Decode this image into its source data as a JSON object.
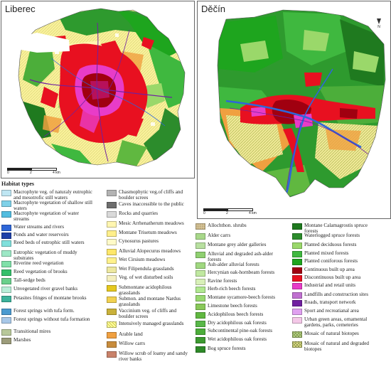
{
  "maps": {
    "liberec": {
      "title": "Liberec",
      "scale": {
        "ticks": [
          "0",
          "2",
          "4 km"
        ]
      }
    },
    "decin": {
      "title": "Děčín",
      "scale": {
        "ticks": [
          "0",
          "2",
          "4 km"
        ]
      },
      "north_label": "N"
    }
  },
  "legend": {
    "title": "Habitat types",
    "columns": [
      [
        {
          "label": "Macrophyte veg. of naturaly eutrophic and mesotrofic still waters",
          "color": "#bfe6f3"
        },
        {
          "label": "Macrophyte vegetation of shallow still waters",
          "color": "#7fd1e8"
        },
        {
          "label": "Macrophyte vegetation of water streams",
          "color": "#52bde0"
        },
        {
          "label": "Water streams and rivers",
          "color": "#2e66d8"
        },
        {
          "label": "Ponds and water reservoirs",
          "color": "#1e40a8"
        },
        {
          "label": "Reed beds of eutrophic still waters",
          "color": "#80e0dc"
        },
        {
          "label": "Eutrophic vegetation of muddy substrates",
          "color": "#9de8c6"
        },
        {
          "label": "Riverine reed vegetation",
          "color": "#7fe0a8"
        },
        {
          "label": "Reed vegetation of brooks",
          "color": "#33c06a"
        },
        {
          "label": "Tall-sedge beds",
          "color": "#6ad08c"
        },
        {
          "label": "Unvegetated river gravel banks",
          "color": "#b8eed8"
        },
        {
          "label": "Petasites fringes of montane brooks",
          "color": "#3cb39b"
        },
        {
          "label": "Forest springs with tufa form.",
          "color": "#4a9ad0"
        },
        {
          "label": "Forest springs without tufa formation",
          "color": "#a8c8e8"
        },
        {
          "label": "Transitional mires",
          "color": "#b8c89a"
        },
        {
          "label": "Marshes",
          "color": "#9c9c7a"
        }
      ],
      [
        {
          "label": "Chasmophytic veg.of cliffs and boulder screes",
          "color": "#b3b3b3"
        },
        {
          "label": "Caves inaccessible to the public",
          "color": "#6e6e6e"
        },
        {
          "label": "Rocks and quarries",
          "color": "#d9d9d9"
        },
        {
          "label": "Mesic Arrhenatherum meadows",
          "color": "#fff6b0"
        },
        {
          "label": "Montane Trisetum meadows",
          "color": "#ffef8a"
        },
        {
          "label": "Cynosurus pastures",
          "color": "#fffac8"
        },
        {
          "label": "Alluvial Alopecurus meadows",
          "color": "#ffe76a"
        },
        {
          "label": "Wet Cirsium meadows",
          "color": "#fff28c"
        },
        {
          "label": "Wet Filipendula grasslands",
          "color": "#ede8a0"
        },
        {
          "label": "Veg. of wet disturbed soils",
          "color": "#f4efbf"
        },
        {
          "label": "Submontane acidophilous grasslands",
          "color": "#e5c81e"
        },
        {
          "label": "Submon. and montane Nardus grasslands",
          "color": "#f2d250"
        },
        {
          "label": "Vaccinium veg. of cliffs and boulder screes",
          "color": "#c9b13a"
        },
        {
          "label": "Intensively managed grasslands",
          "color": "#ffffa0"
        },
        {
          "label": "Arable land",
          "color": "#f0a040"
        },
        {
          "label": "Willow carrs",
          "color": "#c88c3c"
        },
        {
          "label": "Willow scrub of loamy and sandy river banks",
          "color": "#c9826a"
        }
      ],
      [
        {
          "label": "Allochthon. shrubs",
          "color": "#d8c9a0"
        },
        {
          "label": "Alder carrs",
          "color": "#a8d88a"
        },
        {
          "label": "Montane grey alder galleries",
          "color": "#b8e0a0"
        },
        {
          "label": "Alluvial and degraded ash-alder forests",
          "color": "#8fd070"
        },
        {
          "label": "Ash-alder alluvial forests",
          "color": "#a0d880"
        },
        {
          "label": "Hercynian oak-hornbeam forests",
          "color": "#c0e8a0"
        },
        {
          "label": "Ravine forests",
          "color": "#d8f0b8"
        },
        {
          "label": "Herb-rich beech forests",
          "color": "#b0e890"
        },
        {
          "label": "Montane sycamore-beech forests",
          "color": "#98d870"
        },
        {
          "label": "Limestone beech forests",
          "color": "#88c858"
        },
        {
          "label": "Acidophilous beech forests",
          "color": "#60b840"
        },
        {
          "label": "Dry acidophilous oak forests",
          "color": "#58b848"
        },
        {
          "label": "Subcontinental pine-oak forests",
          "color": "#4cae3a"
        },
        {
          "label": "Wet acidophilous oak forests",
          "color": "#3c9a30"
        },
        {
          "label": "Bog spruce forests",
          "color": "#2e8a28"
        }
      ],
      [
        {
          "label": "Montane Calamagrostis spruce forests",
          "color": "#1f7a1f"
        },
        {
          "label": "Waterlogged spruce forests",
          "color": "#2c8c2c"
        },
        {
          "label": "Planted deciduous forests",
          "color": "#9ad86a"
        },
        {
          "label": "Planted mixed forests",
          "color": "#3fb83f"
        },
        {
          "label": "Planted coniforous forests",
          "color": "#1ea51e"
        },
        {
          "label": "Continuous built up area",
          "color": "#a00010"
        },
        {
          "label": "Discontinuous built up area",
          "color": "#e81020"
        },
        {
          "label": "Industrial and retail units",
          "color": "#e83cc8"
        },
        {
          "label": "Landfills and construction sites",
          "color": "#c070d0"
        },
        {
          "label": "Roads, transport network",
          "color": "#7020a0"
        },
        {
          "label": "Sport and recreatianal area",
          "color": "#e0a0f0"
        },
        {
          "label": "Urban green areas, ornamental gardens, parks, cemeteries",
          "color": "#f4c8e8"
        },
        {
          "label": "Mosaic of natural biotopes",
          "color": "#b8d890"
        },
        {
          "label": "Mosaic of natural and degraded biotopes",
          "color": "#e8e090"
        }
      ]
    ]
  }
}
